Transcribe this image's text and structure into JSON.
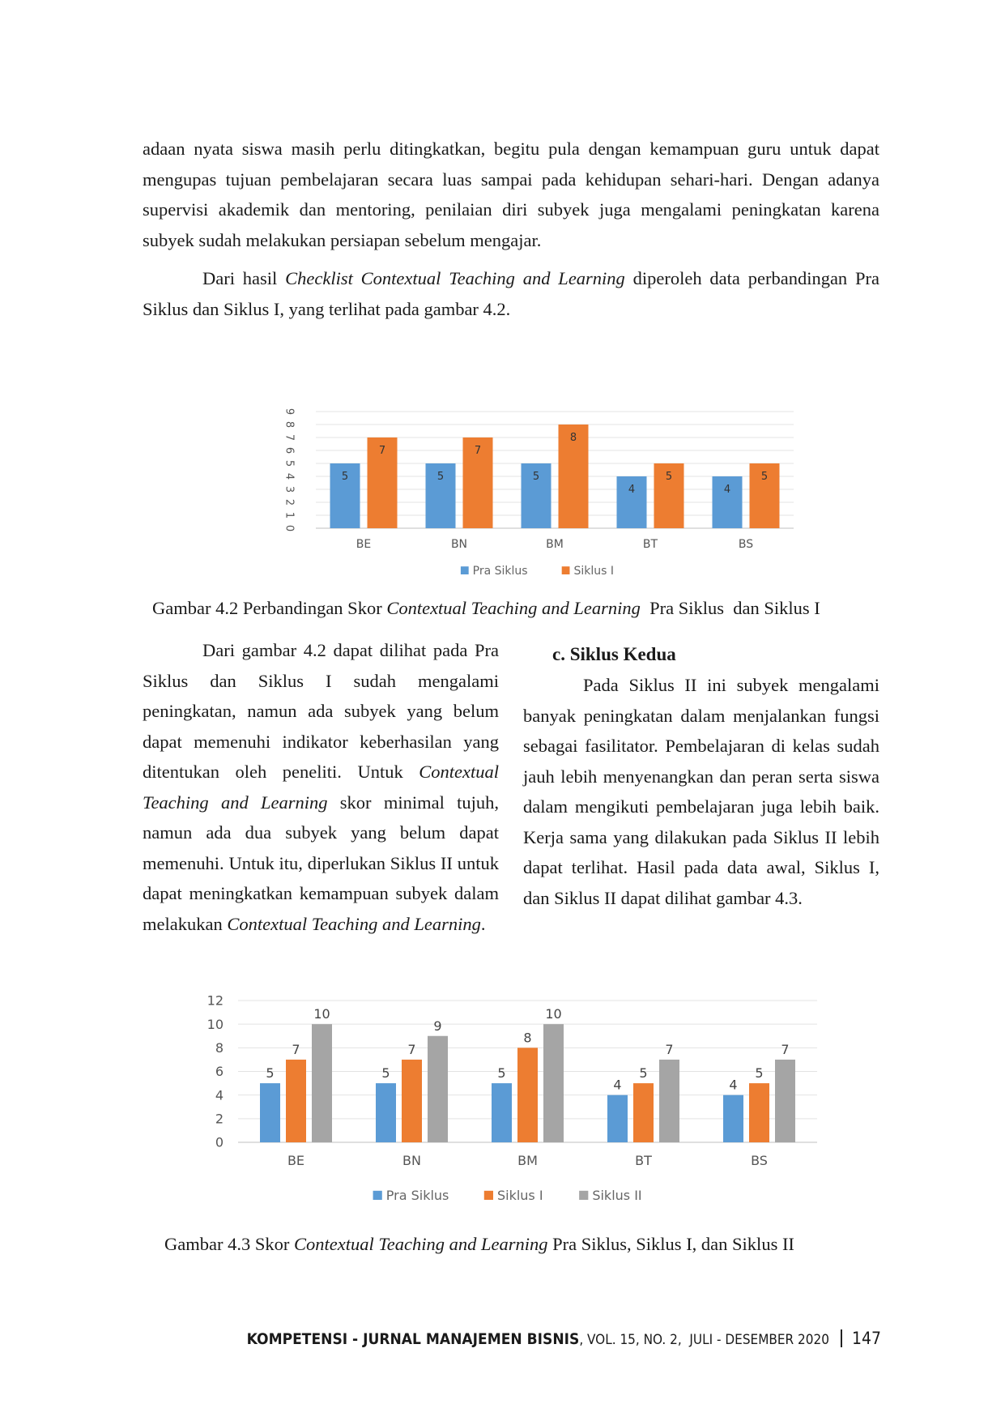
{
  "body": {
    "p1": "adaan nyata siswa masih perlu ditingkatkan, begitu pula dengan kemampuan guru untuk dapat mengupas tujuan pembelajaran secara luas sampai pada kehidupan sehari-hari. Dengan adanya supervisi akademik dan mentoring, penilaian diri subyek juga mengalami peningkatan karena subyek sudah melakukan persiapan sebelum mengajar.",
    "p2_a": "Dari hasil ",
    "p2_em": "Checklist Contextual Teaching and Learning",
    "p2_b": " diperoleh data perbandingan Pra Siklus dan Siklus I, yang terlihat pada gambar 4.2.",
    "left_a": "Dari gambar 4.2 dapat dilihat pada Pra Siklus dan Siklus I sudah mengalami peningkatan, namun ada subyek yang belum dapat memenuhi indikator keberhasilan yang ditentukan oleh peneliti. Untuk ",
    "left_em1": "Contextual Teaching and Learning",
    "left_b": " skor minimal tujuh, namun ada dua subyek yang belum dapat memenuhi. Untuk itu, diperlukan Siklus II untuk dapat meningkatkan kemampuan subyek dalam melakukan ",
    "left_em2": "Contextual Teaching and Learning",
    "left_c": ".",
    "section_heading": "c. Siklus Kedua",
    "right_text": "Pada Siklus II ini subyek mengalami banyak peningkatan dalam menjalankan fungsi sebagai fasilitator. Pembelajaran di kelas sudah jauh lebih menyenangkan dan peran serta siswa dalam mengikuti pembelajaran juga lebih baik. Kerja sama yang dilakukan pada Siklus II lebih dapat terlihat. Hasil pada data awal, Siklus I, dan Siklus II dapat dilihat gambar 4.3."
  },
  "captions": {
    "fig42_a": "Gambar 4.2 Perbandingan Skor ",
    "fig42_em": "Contextual Teaching and Learning",
    "fig42_b": "  Pra Siklus  dan Siklus I",
    "fig43_a": "Gambar 4.3 Skor ",
    "fig43_em": "Contextual Teaching and Learning",
    "fig43_b": " Pra Siklus, Siklus I, dan Siklus II"
  },
  "footer": {
    "journal": "KOMPETENSI - JURNAL MANAJEMEN BISNIS",
    "issue": ", VOL. 15, NO. 2,  JULI - DESEMBER 2020",
    "page": "147"
  },
  "chart_data": [
    {
      "type": "bar",
      "categories": [
        "BE",
        "BN",
        "BM",
        "BT",
        "BS"
      ],
      "series": [
        {
          "name": "Pra Siklus",
          "values": [
            5,
            5,
            5,
            4,
            4
          ],
          "color": "#5b9bd5"
        },
        {
          "name": "Siklus I",
          "values": [
            7,
            7,
            8,
            5,
            5
          ],
          "color": "#ed7d31"
        }
      ],
      "ylim": [
        0,
        9
      ],
      "yticks": [
        0,
        1,
        2,
        3,
        4,
        5,
        6,
        7,
        8,
        9
      ],
      "grid": true,
      "legend": "bottom",
      "data_labels": true
    },
    {
      "type": "bar",
      "categories": [
        "BE",
        "BN",
        "BM",
        "BT",
        "BS"
      ],
      "series": [
        {
          "name": "Pra Siklus",
          "values": [
            5,
            5,
            5,
            4,
            4
          ],
          "color": "#5b9bd5"
        },
        {
          "name": "Siklus I",
          "values": [
            7,
            7,
            8,
            5,
            5
          ],
          "color": "#ed7d31"
        },
        {
          "name": "Siklus II",
          "values": [
            10,
            9,
            10,
            7,
            7
          ],
          "color": "#a5a5a5"
        }
      ],
      "ylim": [
        0,
        12
      ],
      "yticks": [
        0,
        2,
        4,
        6,
        8,
        10,
        12
      ],
      "grid": true,
      "legend": "bottom",
      "data_labels": true
    }
  ]
}
